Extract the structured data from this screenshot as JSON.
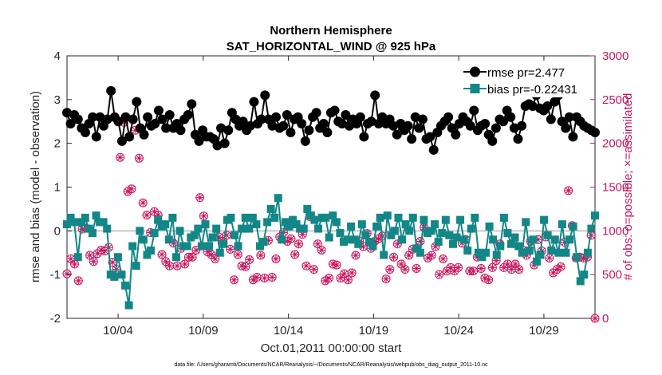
{
  "chart_data": {
    "type": "line",
    "title": [
      "Northern Hemisphere",
      "SAT_HORIZONTAL_WIND @ 925 hPa"
    ],
    "xlabel": "Oct.01,2011 00:00:00 start",
    "ylabel_left": "rmse and bias (model - observation)",
    "ylabel_right": "# of obs: o=possible; ×=assimilated",
    "footnote": "data file: /Users/gharamti/Documents/NCAR/Reanalysis/~/Documents/NCAR/Reanalysis/webpub/obs_diag_output_2011-10.nc",
    "x_range": [
      0,
      124
    ],
    "x_ticks": [
      {
        "label": "10/04",
        "x": 12
      },
      {
        "label": "10/09",
        "x": 32
      },
      {
        "label": "10/14",
        "x": 52
      },
      {
        "label": "10/19",
        "x": 72
      },
      {
        "label": "10/24",
        "x": 92
      },
      {
        "label": "10/29",
        "x": 112
      }
    ],
    "ylim_left": [
      -2,
      4
    ],
    "yticks_left": [
      "-2",
      "-1",
      "0",
      "1",
      "2",
      "3",
      "4"
    ],
    "ylim_right": [
      0,
      3000
    ],
    "yticks_right": [
      "0",
      "500",
      "1000",
      "1500",
      "2000",
      "2500",
      "3000"
    ],
    "zero_line": 0,
    "colors": {
      "rmse": "#000000",
      "bias": "#138787",
      "obs": "#c8155d",
      "zero": "#c8c8c8",
      "axis": "#262626"
    },
    "legend": {
      "position": "top-right",
      "entries": [
        "rmse pr=2.477",
        "bias pr=-0.22431"
      ]
    },
    "series": [
      {
        "name": "rmse",
        "values": [
          2.7,
          2.45,
          2.65,
          2.55,
          2.35,
          2.25,
          2.45,
          2.6,
          2.15,
          2.6,
          2.4,
          2.55,
          3.2,
          2.6,
          2.5,
          2.05,
          2.6,
          2.15,
          2.55,
          2.95,
          2.35,
          2.2,
          2.6,
          2.4,
          2.45,
          2.75,
          2.55,
          2.35,
          2.65,
          2.35,
          2.45,
          2.3,
          2.55,
          2.65,
          2.9,
          2.2,
          2.05,
          2.3,
          2.15,
          2.15,
          2.1,
          1.95,
          2.35,
          2.0,
          2.3,
          2.7,
          2.55,
          2.4,
          2.5,
          2.3,
          2.4,
          2.95,
          2.45,
          2.55,
          3.1,
          2.55,
          2.4,
          2.6,
          2.35,
          2.4,
          2.65,
          2.25,
          2.55,
          2.6,
          2.45,
          2.05,
          2.3,
          2.6,
          2.7,
          2.35,
          2.45,
          2.25,
          2.7,
          2.75,
          2.5,
          2.45,
          2.65,
          2.4,
          2.55,
          2.45,
          2.6,
          2.15,
          2.45,
          2.5,
          3.1,
          2.45,
          2.6,
          2.45,
          2.55,
          2.4,
          2.2,
          2.45,
          2.3,
          2.4,
          2.1,
          2.6,
          2.35,
          2.55,
          2.1,
          2.15,
          1.85,
          2.25,
          2.4,
          2.5,
          2.6,
          2.35,
          2.2,
          2.45,
          2.6,
          2.5,
          2.4,
          2.75,
          2.3,
          2.4,
          2.45,
          2.2,
          2.05,
          2.35,
          2.55,
          2.5,
          2.75,
          2.6,
          2.35,
          2.1,
          2.4,
          2.85,
          2.9,
          2.85,
          3.1,
          2.8,
          2.75,
          2.85,
          2.55,
          2.95,
          3.1,
          2.5,
          2.35,
          2.6,
          2.15,
          2.6,
          2.5,
          2.4,
          2.35,
          2.3,
          2.25
        ]
      },
      {
        "name": "bias",
        "values": [
          0.15,
          0.3,
          0.2,
          -0.6,
          0.2,
          0.3,
          0.05,
          -0.05,
          0.35,
          0.2,
          0.2,
          0.05,
          -1.0,
          -1.05,
          -0.6,
          -1.0,
          -1.25,
          -1.7,
          -0.35,
          -0.8,
          0.0,
          -0.2,
          -0.55,
          -0.45,
          -0.05,
          0.25,
          0.1,
          0.15,
          -0.2,
          0.3,
          -0.6,
          0.0,
          -0.35,
          -0.35,
          -0.15,
          -0.1,
          0.05,
          -0.35,
          0.15,
          -0.35,
          -0.15,
          0.05,
          -0.5,
          -0.3,
          0.25,
          0.3,
          -0.1,
          -0.35,
          0.05,
          0.3,
          0.05,
          0.3,
          0.15,
          -0.35,
          -0.25,
          0.2,
          0.5,
          0.3,
          0.75,
          -0.2,
          0.2,
          0.1,
          0.25,
          0.15,
          0.05,
          0.05,
          0.5,
          0.35,
          0.25,
          0.05,
          0.3,
          0.3,
          -0.15,
          0.35,
          0.2,
          -0.05,
          -0.25,
          -0.2,
          0.1,
          -0.2,
          -0.3,
          0.15,
          -0.1,
          -0.25,
          -0.35,
          0.1,
          0.3,
          -0.55,
          0.35,
          -0.1,
          0.0,
          0.3,
          -0.2,
          0.15,
          0.0,
          0.3,
          -0.4,
          -0.5,
          0.25,
          -0.05,
          0.0,
          0.15,
          -0.25,
          -0.05,
          0.25,
          -0.1,
          -0.3,
          -0.15,
          0.25,
          -0.2,
          -0.45,
          0.05,
          0.3,
          -0.5,
          -0.6,
          -0.5,
          0.1,
          -0.2,
          -0.55,
          -0.35,
          0.3,
          -0.05,
          -0.3,
          -0.15,
          -0.35,
          -0.5,
          0.2,
          -0.45,
          -0.2,
          -0.7,
          -0.55,
          0.25,
          -0.1,
          -0.45,
          -0.2,
          -0.5,
          0.15,
          -0.5,
          -0.2,
          0.1,
          -0.6,
          -1.15,
          -1.0,
          -0.5,
          0.05,
          0.35
        ]
      },
      {
        "name": "obs_possible",
        "values": [
          510,
          680,
          620,
          430,
          1020,
          1030,
          720,
          650,
          740,
          780,
          770,
          810,
          640,
          560,
          1840,
          2240,
          1450,
          1480,
          2150,
          1830,
          1320,
          1180,
          980,
          1220,
          1180,
          730,
          650,
          600,
          860,
          600,
          800,
          620,
          700,
          700,
          780,
          1380,
          1170,
          760,
          730,
          680,
          930,
          880,
          950,
          790,
          440,
          730,
          600,
          590,
          670,
          440,
          470,
          720,
          460,
          890,
          470,
          680,
          930,
          980,
          880,
          910,
          730,
          850,
          960,
          600,
          1160,
          560,
          850,
          780,
          430,
          460,
          620,
          610,
          460,
          510,
          440,
          520,
          720,
          880,
          820,
          970,
          800,
          880,
          910,
          940,
          450,
          560,
          700,
          850,
          620,
          560,
          720,
          790,
          570,
          880,
          1040,
          690,
          720,
          820,
          500,
          680,
          540,
          580,
          540,
          580,
          860,
          900,
          540,
          540,
          700,
          570,
          460,
          440,
          580,
          660,
          850,
          580,
          620,
          560,
          620,
          560,
          780,
          720,
          880,
          610,
          900,
          770,
          930,
          690,
          520,
          560,
          590,
          870,
          1460,
          1060,
          690,
          700,
          690,
          700,
          950,
          0
        ]
      }
    ]
  }
}
